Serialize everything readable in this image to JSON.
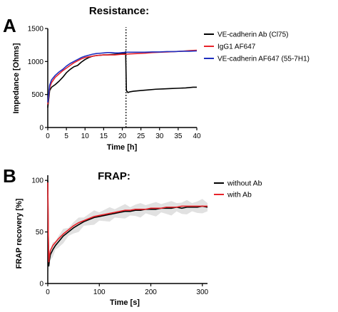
{
  "panels": {
    "a": {
      "letter": "A",
      "heading": "Resistance:"
    },
    "b": {
      "letter": "B",
      "heading": "FRAP:"
    }
  },
  "chart_data": [
    {
      "type": "line",
      "xlabel": "Time [h]",
      "ylabel": "Impedance [Ohms]",
      "xlim": [
        0,
        40
      ],
      "ylim": [
        0,
        1500
      ],
      "xticks": [
        "0",
        "5",
        "10",
        "15",
        "20",
        "25",
        "30",
        "35",
        "40"
      ],
      "yticks": [
        "0",
        "500",
        "1000",
        "1500"
      ],
      "grid": false,
      "legend_position": "right",
      "annotation": {
        "type": "vertical-dotted-line",
        "x": 21
      },
      "series": [
        {
          "name": "VE-cadherin Ab (Cl75)",
          "color": "#000000",
          "x": [
            0,
            0.5,
            1,
            2,
            3,
            4,
            5,
            6,
            7,
            8,
            9,
            10,
            11,
            12,
            13,
            14,
            15,
            16,
            17,
            18,
            19,
            20,
            20.8,
            20.9,
            21.1,
            21.5,
            22,
            23,
            25,
            27,
            29,
            31,
            33,
            35,
            37,
            39,
            40
          ],
          "y": [
            300,
            560,
            610,
            650,
            700,
            760,
            830,
            880,
            920,
            940,
            990,
            1030,
            1060,
            1080,
            1090,
            1095,
            1100,
            1100,
            1105,
            1110,
            1115,
            1120,
            1125,
            1150,
            560,
            530,
            540,
            550,
            560,
            570,
            580,
            585,
            590,
            595,
            600,
            610,
            610
          ]
        },
        {
          "name": "IgG1 AF647",
          "color": "#e8232a",
          "x": [
            0,
            0.5,
            1,
            2,
            3,
            4,
            5,
            6,
            7,
            8,
            9,
            10,
            11,
            12,
            13,
            14,
            15,
            16,
            17,
            18,
            19,
            20,
            21,
            22,
            24,
            26,
            28,
            30,
            32,
            34,
            36,
            38,
            40
          ],
          "y": [
            350,
            600,
            680,
            760,
            810,
            860,
            900,
            940,
            980,
            1010,
            1040,
            1060,
            1070,
            1080,
            1090,
            1095,
            1100,
            1100,
            1100,
            1100,
            1105,
            1110,
            1110,
            1115,
            1120,
            1125,
            1135,
            1140,
            1145,
            1150,
            1155,
            1165,
            1170
          ]
        },
        {
          "name": "VE-cadherin AF647 (55-7H1)",
          "color": "#1f2fbf",
          "x": [
            0,
            0.5,
            1,
            2,
            3,
            4,
            5,
            6,
            7,
            8,
            9,
            10,
            11,
            12,
            13,
            14,
            15,
            16,
            17,
            18,
            19,
            20,
            21,
            22,
            24,
            26,
            28,
            30,
            32,
            34,
            36,
            38,
            40
          ],
          "y": [
            380,
            640,
            720,
            790,
            840,
            880,
            930,
            970,
            1000,
            1030,
            1060,
            1080,
            1095,
            1110,
            1120,
            1125,
            1130,
            1135,
            1135,
            1130,
            1130,
            1135,
            1140,
            1140,
            1140,
            1140,
            1145,
            1145,
            1150,
            1150,
            1155,
            1155,
            1160
          ]
        }
      ]
    },
    {
      "type": "line",
      "xlabel": "Time [s]",
      "ylabel": "FRAP recovery [%]",
      "xlim": [
        0,
        310
      ],
      "ylim": [
        0,
        105
      ],
      "xticks": [
        "0",
        "100",
        "200",
        "300"
      ],
      "yticks": [
        "0",
        "50",
        "100"
      ],
      "grid": false,
      "legend_position": "top-right",
      "series": [
        {
          "name": "without Ab",
          "color": "#000000",
          "x": [
            0,
            1,
            2,
            3,
            5,
            10,
            15,
            20,
            30,
            40,
            50,
            60,
            70,
            80,
            90,
            100,
            110,
            120,
            130,
            140,
            150,
            160,
            170,
            180,
            190,
            200,
            210,
            220,
            230,
            240,
            250,
            260,
            270,
            280,
            290,
            300,
            310
          ],
          "y": [
            100,
            45,
            17,
            22,
            28,
            33,
            37,
            40,
            46,
            50,
            54,
            57,
            60,
            62,
            64,
            65,
            66,
            67,
            68,
            69,
            70,
            70,
            71,
            71,
            72,
            72,
            72,
            73,
            73,
            73,
            74,
            73,
            74,
            74,
            74,
            75,
            74
          ]
        },
        {
          "name": "with Ab",
          "color": "#e8232a",
          "x": [
            0,
            1,
            2,
            3,
            5,
            10,
            15,
            20,
            30,
            40,
            50,
            60,
            70,
            80,
            90,
            100,
            110,
            120,
            130,
            140,
            150,
            160,
            170,
            180,
            190,
            200,
            210,
            220,
            230,
            240,
            250,
            260,
            270,
            280,
            290,
            300,
            310
          ],
          "y": [
            98,
            50,
            21,
            26,
            32,
            37,
            40,
            43,
            48,
            52,
            56,
            59,
            61,
            63,
            65,
            66,
            67,
            68,
            69,
            70,
            71,
            71,
            72,
            72,
            72,
            73,
            73,
            73,
            74,
            74,
            74,
            75,
            75,
            75,
            75,
            75,
            75
          ]
        }
      ],
      "error_band": {
        "color": "#d9d9d9"
      }
    }
  ]
}
